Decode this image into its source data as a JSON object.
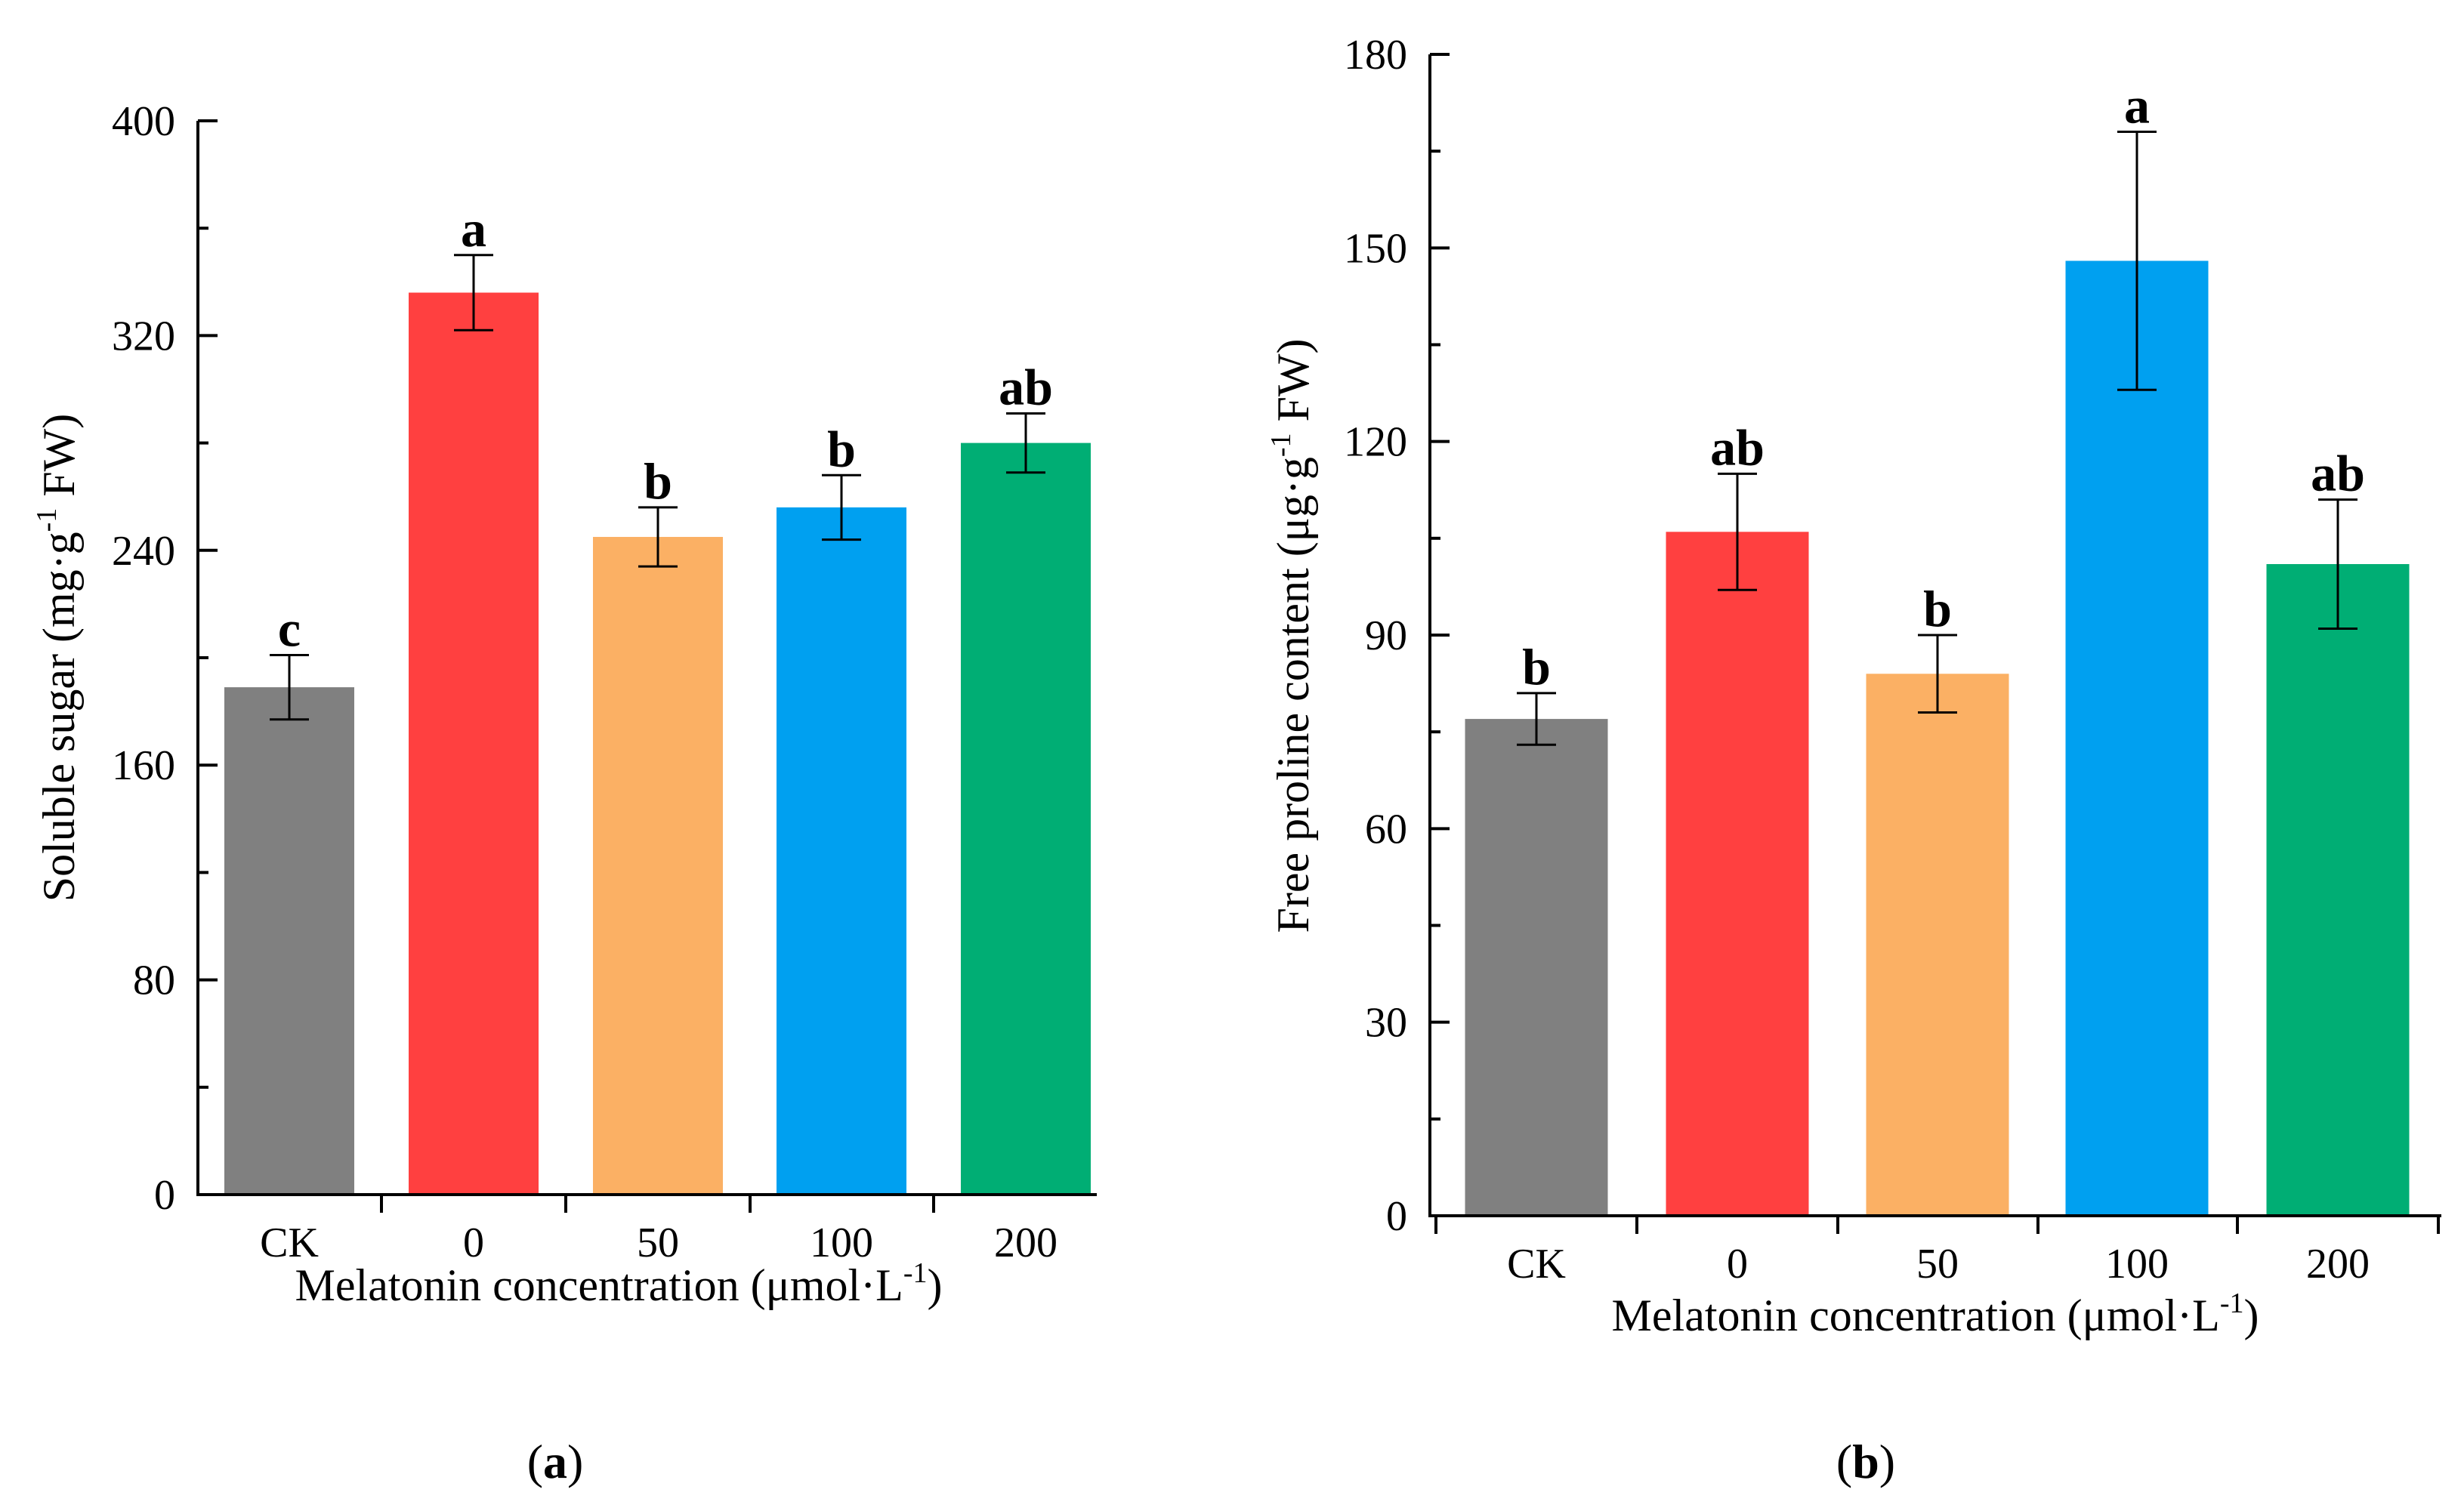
{
  "chart_data": [
    {
      "type": "bar",
      "panel": "a",
      "caption_open": "(",
      "caption_letter": "a",
      "caption_close": ")",
      "categories": [
        "CK",
        "0",
        "50",
        "100",
        "200"
      ],
      "values": [
        189,
        336,
        245,
        256,
        280
      ],
      "errors": [
        12,
        14,
        11,
        12,
        11
      ],
      "significance": [
        "c",
        "a",
        "b",
        "b",
        "ab"
      ],
      "colors": [
        "#808080",
        "#ff4040",
        "#fbb064",
        "#00a0f0",
        "#00ae74"
      ],
      "xlabel_main": "Melatonin concentration (μmol·L",
      "xlabel_sup": "-1",
      "xlabel_end": ")",
      "ylabel_main": "Soluble sugar (mg·g",
      "ylabel_sup": "-1",
      "ylabel_end": " FW)",
      "ylim": [
        0,
        400
      ],
      "yticks": [
        0,
        80,
        160,
        240,
        320,
        400
      ]
    },
    {
      "type": "bar",
      "panel": "b",
      "caption_open": "(",
      "caption_letter": "b",
      "caption_close": ")",
      "categories": [
        "CK",
        "0",
        "50",
        "100",
        "200"
      ],
      "values": [
        77,
        106,
        84,
        148,
        101
      ],
      "errors": [
        4,
        9,
        6,
        20,
        10
      ],
      "significance": [
        "b",
        "ab",
        "b",
        "a",
        "ab"
      ],
      "colors": [
        "#808080",
        "#ff4040",
        "#fbb064",
        "#00a0f0",
        "#00ae74"
      ],
      "xlabel_main": "Melatonin concentration (μmol·L",
      "xlabel_sup": "-1",
      "xlabel_end": ")",
      "ylabel_main": "Free proline content (μg·g",
      "ylabel_sup": "-1",
      "ylabel_end": " FW)",
      "ylim": [
        0,
        180
      ],
      "yticks": [
        0,
        30,
        60,
        90,
        120,
        150,
        180
      ]
    }
  ]
}
